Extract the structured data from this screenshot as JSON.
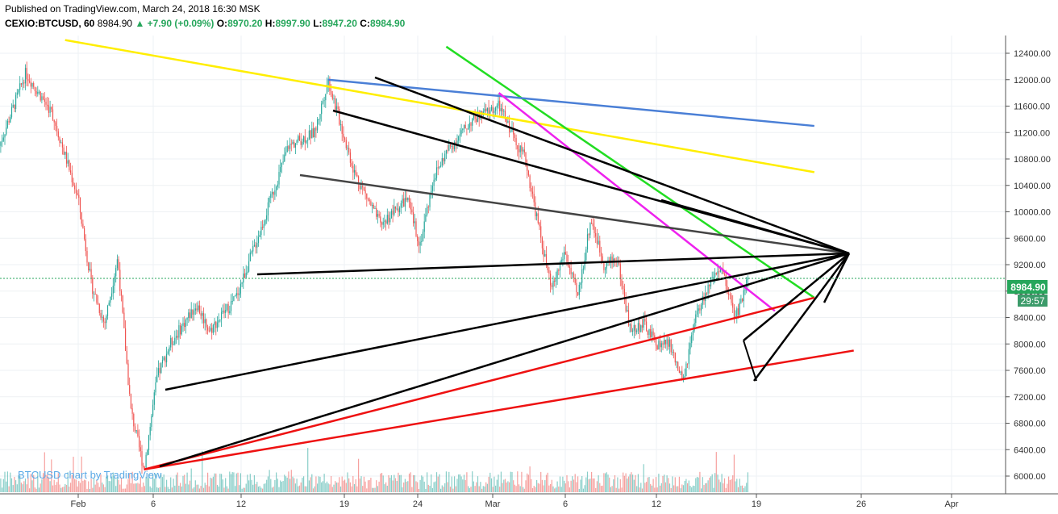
{
  "header": {
    "published": "Published on TradingView.com, March 24, 2018 16:30 MSK",
    "symbol": "CEXIO:BTCUSD, 60",
    "last": "8984.90",
    "change": "▲ +7.90 (+0.09%)",
    "o_label": "O:",
    "o_value": "8970.20",
    "h_label": "H:",
    "h_value": "8997.90",
    "l_label": "L:",
    "l_value": "8947.20",
    "c_label": "C:",
    "c_value": "8984.90"
  },
  "watermark": "BTCUSD chart by TradingView",
  "price_label": "8984.90",
  "countdown_label": "29:57",
  "colors": {
    "up": "#26a69a",
    "down": "#ef5350",
    "price_tag": "#26a65b",
    "countdown_tag": "#3c9b6a",
    "grid": "#eef1f4"
  },
  "chart_data": {
    "type": "candlestick",
    "symbol": "BTCUSD",
    "interval": "60",
    "last_price": 8984.9,
    "y_ticks": [
      6000,
      6400,
      6800,
      7200,
      7600,
      8000,
      8400,
      8800,
      9200,
      9600,
      10000,
      10400,
      10800,
      11200,
      11600,
      12000,
      12400
    ],
    "x_ticks": [
      "Feb",
      "6",
      "12",
      "19",
      "24",
      "Mar",
      "6",
      "12",
      "19",
      "26",
      "Apr"
    ],
    "grid": true,
    "price_path": [
      [
        "Jan 26",
        11000
      ],
      [
        "Jan 28",
        12100
      ],
      [
        "Jan 30",
        11500
      ],
      [
        "Feb 1",
        10200
      ],
      [
        "Feb 2",
        8900
      ],
      [
        "Feb 3",
        8300
      ],
      [
        "Feb 4",
        9300
      ],
      [
        "Feb 5",
        7000
      ],
      [
        "Feb 6",
        6100
      ],
      [
        "Feb 7",
        7500
      ],
      [
        "Feb 8",
        8000
      ],
      [
        "Feb 10",
        8600
      ],
      [
        "Feb 11",
        8200
      ],
      [
        "Feb 13",
        8700
      ],
      [
        "Feb 15",
        9800
      ],
      [
        "Feb 17",
        11000
      ],
      [
        "Feb 19",
        11200
      ],
      [
        "Feb 20",
        12000
      ],
      [
        "Feb 22",
        10600
      ],
      [
        "Feb 24",
        9800
      ],
      [
        "Feb 26",
        10200
      ],
      [
        "Feb 27",
        9500
      ],
      [
        "Feb 28",
        10500
      ],
      [
        "Mar 1",
        10900
      ],
      [
        "Mar 3",
        11400
      ],
      [
        "Mar 5",
        11600
      ],
      [
        "Mar 6",
        11200
      ],
      [
        "Mar 7",
        10800
      ],
      [
        "Mar 8",
        9800
      ],
      [
        "Mar 9",
        8800
      ],
      [
        "Mar 10",
        9400
      ],
      [
        "Mar 11",
        8700
      ],
      [
        "Mar 12",
        9900
      ],
      [
        "Mar 13",
        9200
      ],
      [
        "Mar 14",
        9300
      ],
      [
        "Mar 15",
        8200
      ],
      [
        "Mar 16",
        8300
      ],
      [
        "Mar 17",
        8000
      ],
      [
        "Mar 18",
        8000
      ],
      [
        "Mar 19",
        7400
      ],
      [
        "Mar 20",
        8400
      ],
      [
        "Mar 21",
        8900
      ],
      [
        "Mar 22",
        9100
      ],
      [
        "Mar 23",
        8400
      ],
      [
        "Mar 24",
        8985
      ]
    ],
    "drawn_lines": [
      {
        "color": "yellow",
        "from": [
          "Jan 31",
          12600
        ],
        "to": [
          "Mar 29",
          10600
        ]
      },
      {
        "color": "green",
        "from": [
          "Mar 1",
          12500
        ],
        "to": [
          "Mar 29",
          8700
        ]
      },
      {
        "color": "blue",
        "from": [
          "Feb 20",
          12000
        ],
        "to": [
          "Mar 29",
          11300
        ]
      },
      {
        "color": "magenta",
        "from": [
          "Mar 5",
          11800
        ],
        "to": [
          "Mar 26",
          8500
        ]
      },
      {
        "color": "red",
        "from": [
          "Feb 6",
          6100
        ],
        "to": [
          "Mar 29",
          8700
        ]
      },
      {
        "color": "red",
        "from": [
          "Feb 6",
          6100
        ],
        "to": [
          "Apr 1",
          7900
        ]
      }
    ]
  }
}
